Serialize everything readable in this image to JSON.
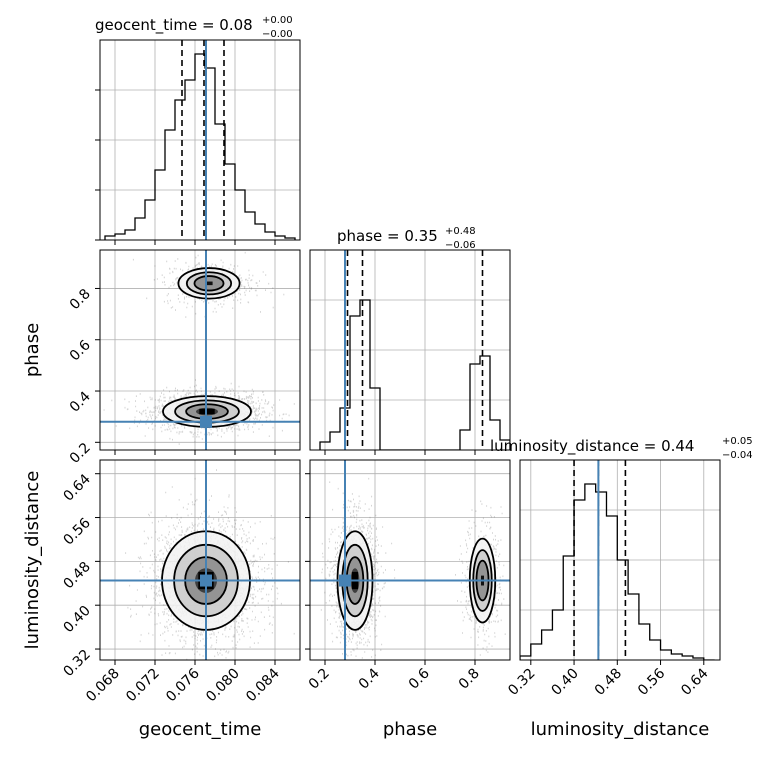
{
  "chart_data": [
    {
      "type": "histogram",
      "panel": "geocent_time",
      "title": {
        "param": "geocent_time",
        "median": "0.08",
        "plus": "+0.00",
        "minus": "−0.00"
      },
      "xlim": [
        0.0665,
        0.0865
      ],
      "bins_x": [
        0.067,
        0.068,
        0.069,
        0.07,
        0.071,
        0.072,
        0.073,
        0.074,
        0.075,
        0.076,
        0.077,
        0.078,
        0.079,
        0.08,
        0.081,
        0.082,
        0.083,
        0.084,
        0.085,
        0.086
      ],
      "counts": [
        0.02,
        0.03,
        0.05,
        0.11,
        0.2,
        0.35,
        0.55,
        0.7,
        0.8,
        0.93,
        0.86,
        0.58,
        0.38,
        0.25,
        0.14,
        0.08,
        0.04,
        0.02,
        0.01
      ],
      "quantiles": [
        0.0747,
        0.0769,
        0.0789
      ],
      "truth": 0.0771
    },
    {
      "type": "histogram",
      "panel": "phase",
      "title": {
        "param": "phase",
        "median": "0.35",
        "plus": "+0.48",
        "minus": "−0.06"
      },
      "xlim": [
        0.14,
        0.94
      ],
      "bins_x": [
        0.18,
        0.22,
        0.26,
        0.3,
        0.34,
        0.38,
        0.42,
        0.46,
        0.5,
        0.54,
        0.58,
        0.62,
        0.66,
        0.7,
        0.74,
        0.78,
        0.82,
        0.86,
        0.9,
        0.94
      ],
      "counts": [
        0.04,
        0.09,
        0.21,
        0.67,
        0.75,
        0.31,
        0.0,
        0.0,
        0.0,
        0.0,
        0.0,
        0.0,
        0.0,
        0.0,
        0.1,
        0.43,
        0.47,
        0.15,
        0.05
      ],
      "quantiles": [
        0.29,
        0.35,
        0.83
      ],
      "truth": 0.28,
      "ytick_values": [
        0.2,
        0.4,
        0.6,
        0.8
      ]
    },
    {
      "type": "histogram",
      "panel": "luminosity_distance",
      "title": {
        "param": "luminosity_distance",
        "median": "0.44",
        "plus": "+0.05",
        "minus": "−0.04"
      },
      "xlim": [
        0.3,
        0.67
      ],
      "bins_x": [
        0.3,
        0.32,
        0.34,
        0.36,
        0.38,
        0.4,
        0.42,
        0.44,
        0.46,
        0.48,
        0.5,
        0.52,
        0.54,
        0.56,
        0.58,
        0.6,
        0.62,
        0.64,
        0.66
      ],
      "counts": [
        0.02,
        0.08,
        0.15,
        0.25,
        0.52,
        0.8,
        0.88,
        0.84,
        0.72,
        0.5,
        0.33,
        0.18,
        0.1,
        0.05,
        0.03,
        0.02,
        0.01,
        0.0
      ],
      "quantiles": [
        0.4,
        0.445,
        0.495
      ],
      "truth": 0.445
    },
    {
      "type": "scatter",
      "panel": "geocent_time vs phase",
      "xlim": [
        0.0665,
        0.0865
      ],
      "ylim": [
        0.17,
        0.95
      ],
      "modes": [
        {
          "x": 0.0772,
          "y": 0.32,
          "sx": 0.0022,
          "sy": 0.03,
          "weight": 0.78
        },
        {
          "x": 0.0774,
          "y": 0.82,
          "sx": 0.0018,
          "sy": 0.035,
          "weight": 0.22
        }
      ],
      "truth": [
        0.0771,
        0.28
      ]
    },
    {
      "type": "scatter",
      "panel": "geocent_time vs luminosity_distance",
      "xlim": [
        0.0665,
        0.0865
      ],
      "ylim": [
        0.3,
        0.665
      ],
      "modes": [
        {
          "x": 0.0771,
          "y": 0.445,
          "sx": 0.0022,
          "sy": 0.045,
          "weight": 1.0
        }
      ],
      "truth": [
        0.0771,
        0.445
      ]
    },
    {
      "type": "scatter",
      "panel": "phase vs luminosity_distance",
      "xlim": [
        0.14,
        0.94
      ],
      "ylim": [
        0.3,
        0.665
      ],
      "modes": [
        {
          "x": 0.32,
          "y": 0.445,
          "sx": 0.035,
          "sy": 0.045,
          "weight": 0.78
        },
        {
          "x": 0.83,
          "y": 0.445,
          "sx": 0.03,
          "sy": 0.045,
          "weight": 0.22
        }
      ],
      "truth": [
        0.28,
        0.445
      ]
    }
  ],
  "axes": {
    "geocent_time": {
      "label": "geocent_time",
      "ticks": [
        "0.068",
        "0.072",
        "0.076",
        "0.080",
        "0.084"
      ],
      "tick_values": [
        0.068,
        0.072,
        0.076,
        0.08,
        0.084
      ]
    },
    "phase": {
      "label": "phase",
      "ticks": [
        "0.2",
        "0.4",
        "0.6",
        "0.8"
      ],
      "tick_values": [
        0.2,
        0.4,
        0.6,
        0.8
      ]
    },
    "luminosity_distance": {
      "label": "luminosity_distance",
      "ticks": [
        "0.32",
        "0.40",
        "0.48",
        "0.56",
        "0.64"
      ],
      "tick_values": [
        0.32,
        0.4,
        0.48,
        0.56,
        0.64
      ]
    }
  },
  "colors": {
    "truth": "#4682b4",
    "hist": "#000000",
    "grid": "#b0b0b0",
    "scatter": "#555555"
  }
}
